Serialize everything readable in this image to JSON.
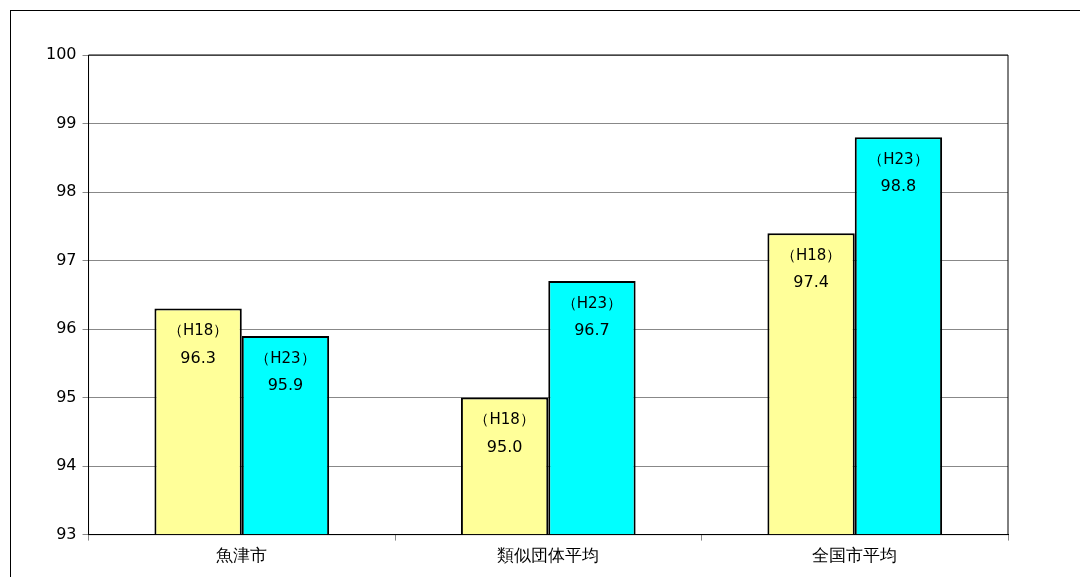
{
  "chart_data": {
    "type": "bar",
    "categories": [
      "魚津市",
      "類似団体平均",
      "全国市平均"
    ],
    "series": [
      {
        "name": "（H18）",
        "color": "#ffff99",
        "values": [
          96.3,
          95.0,
          97.4
        ],
        "value_labels": [
          "96.3",
          "95.0",
          "97.4"
        ]
      },
      {
        "name": "（H23）",
        "color": "#00ffff",
        "values": [
          95.9,
          96.7,
          98.8
        ],
        "value_labels": [
          "95.9",
          "96.7",
          "98.8"
        ]
      }
    ],
    "ylim": [
      93,
      100
    ],
    "yticks": [
      93,
      94,
      95,
      96,
      97,
      98,
      99,
      100
    ],
    "grid": "y",
    "legend": false
  }
}
